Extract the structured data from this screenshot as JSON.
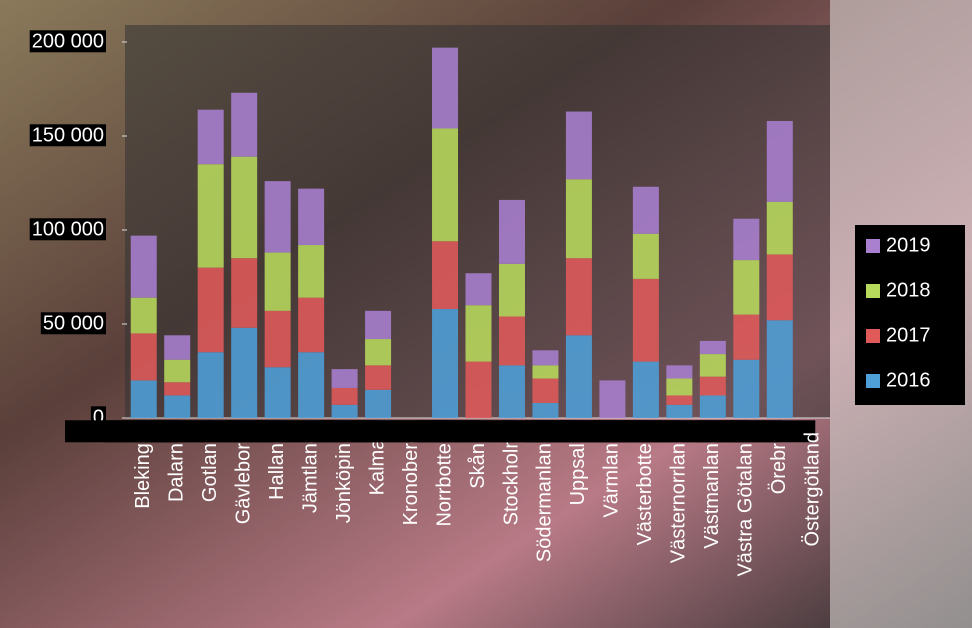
{
  "chart_data": {
    "type": "stacked-bar",
    "categories": [
      "Blekinge",
      "Dalarna",
      "Gotland",
      "Gävleborg",
      "Halland",
      "Jämtland",
      "Jönköping",
      "Kalmar",
      "Kronoberg",
      "Norrbotten",
      "Skåne",
      "Stockholm",
      "Södermanland",
      "Uppsala",
      "Värmland",
      "Västerbotten",
      "Västernorrland",
      "Västmanland",
      "Västra Götaland",
      "Örebro",
      "Östergötland"
    ],
    "series": [
      {
        "name": "2016",
        "color": "#4f9fd8",
        "values": [
          20000,
          12000,
          35000,
          48000,
          27000,
          35000,
          7000,
          15000,
          null,
          58000,
          0,
          28000,
          8000,
          44000,
          0,
          30000,
          7000,
          12000,
          31000,
          52000,
          null
        ]
      },
      {
        "name": "2017",
        "color": "#e05a5a",
        "values": [
          25000,
          7000,
          45000,
          37000,
          30000,
          29000,
          9000,
          13000,
          null,
          36000,
          30000,
          26000,
          13000,
          41000,
          0,
          44000,
          5000,
          10000,
          24000,
          35000,
          null
        ]
      },
      {
        "name": "2018",
        "color": "#b8da5c",
        "values": [
          19000,
          12000,
          55000,
          54000,
          31000,
          28000,
          0,
          14000,
          null,
          60000,
          30000,
          28000,
          7000,
          42000,
          0,
          24000,
          9000,
          12000,
          29000,
          28000,
          null
        ]
      },
      {
        "name": "2019",
        "color": "#a97fd0",
        "values": [
          33000,
          13000,
          29000,
          34000,
          38000,
          30000,
          10000,
          15000,
          null,
          43000,
          17000,
          34000,
          8000,
          36000,
          20000,
          25000,
          7000,
          7000,
          22000,
          43000,
          null
        ]
      }
    ],
    "ylim": [
      0,
      200000
    ],
    "yticks": [
      0,
      {
        "value": 50000,
        "label": "50 000"
      },
      {
        "value": 100000,
        "label": "100 000"
      },
      {
        "value": 150000,
        "label": "150 000"
      },
      {
        "value": 200000,
        "label": "200 000"
      }
    ],
    "legend": "right"
  }
}
